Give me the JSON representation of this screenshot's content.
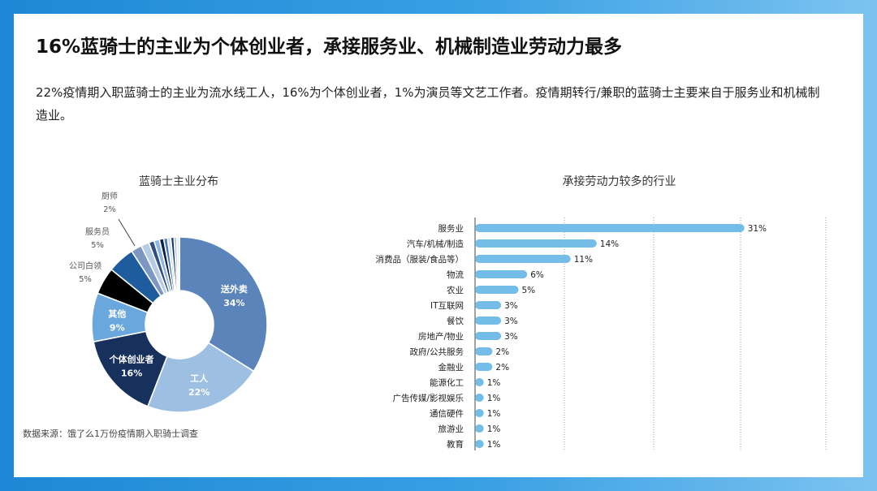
{
  "header": {
    "title": "16%蓝骑士的主业为个体创业者，承接服务业、机械制造业劳动力最多",
    "description": "22%疫情期入职蓝骑士的主业为流水线工人，16%为个体创业者，1%为演员等文艺工作者。疫情期转行/兼职的蓝骑士主要来自于服务业和机械制造业。"
  },
  "footer": {
    "source": "数据来源：饿了么1万份疫情期入职骑士调查"
  },
  "colors": {
    "bar": "#73bde8",
    "background_blue": "#2b95de"
  },
  "chart_data": [
    {
      "type": "pie",
      "title": "蓝骑士主业分布",
      "slices": [
        {
          "label": "送外卖",
          "value": 34,
          "value_label": "34%",
          "color": "#5b84ba",
          "label_inside": true
        },
        {
          "label": "工人",
          "value": 22,
          "value_label": "22%",
          "color": "#9dbfe1",
          "label_inside": true
        },
        {
          "label": "个体创业者",
          "value": 16,
          "value_label": "16%",
          "color": "#17305c",
          "label_inside": true
        },
        {
          "label": "其他",
          "value": 9,
          "value_label": "9%",
          "color": "#6aa7dc",
          "label_inside": true
        },
        {
          "label": "公司白领",
          "value": 5,
          "value_label": "5%",
          "color": "#000000",
          "label_inside": false
        },
        {
          "label": "服务员",
          "value": 5,
          "value_label": "5%",
          "color": "#1f5c9e",
          "label_inside": false
        },
        {
          "label": "",
          "value": 2,
          "value_label": "",
          "color": "#7d97c3",
          "label_inside": false
        },
        {
          "label": "",
          "value": 1.5,
          "value_label": "",
          "color": "#b6cbe6",
          "label_inside": false
        },
        {
          "label": "",
          "value": 1,
          "value_label": "",
          "color": "#2f4f86",
          "label_inside": false
        },
        {
          "label": "",
          "value": 1,
          "value_label": "",
          "color": "#8fb5e0",
          "label_inside": false
        },
        {
          "label": "",
          "value": 0.8,
          "value_label": "",
          "color": "#0f2142",
          "label_inside": false
        },
        {
          "label": "",
          "value": 0.7,
          "value_label": "",
          "color": "#4a78b8",
          "label_inside": false
        },
        {
          "label": "",
          "value": 0.6,
          "value_label": "",
          "color": "#c9daef",
          "label_inside": false
        },
        {
          "label": "",
          "value": 0.6,
          "value_label": "",
          "color": "#1c3766",
          "label_inside": false
        },
        {
          "label": "",
          "value": 0.5,
          "value_label": "",
          "color": "#9fc2e8",
          "label_inside": false
        },
        {
          "label": "",
          "value": 0.5,
          "value_label": "",
          "color": "#dfe8f4",
          "label_inside": false
        }
      ],
      "annotations": [
        {
          "label": "公司白领",
          "value_label": "5%"
        },
        {
          "label": "服务员",
          "value_label": "5%"
        },
        {
          "label": "厨师",
          "value_label": "2%"
        }
      ]
    },
    {
      "type": "bar",
      "orientation": "horizontal",
      "title": "承接劳动力较多的行业",
      "categories": [
        "服务业",
        "汽车/机械/制造",
        "消费品（服装/食品等）",
        "物流",
        "农业",
        "IT互联网",
        "餐饮",
        "房地产/物业",
        "政府/公共服务",
        "金融业",
        "能源化工",
        "广告传媒/影视娱乐",
        "通信硬件",
        "旅游业",
        "教育"
      ],
      "values": [
        31,
        14,
        11,
        6,
        5,
        3,
        3,
        3,
        2,
        2,
        1,
        1,
        1,
        1,
        1
      ],
      "value_labels": [
        "31%",
        "14%",
        "11%",
        "6%",
        "5%",
        "3%",
        "3%",
        "3%",
        "2%",
        "2%",
        "1%",
        "1%",
        "1%",
        "1%",
        "1%"
      ],
      "xlim": [
        0,
        35
      ],
      "grid": "vertical dotted"
    }
  ]
}
